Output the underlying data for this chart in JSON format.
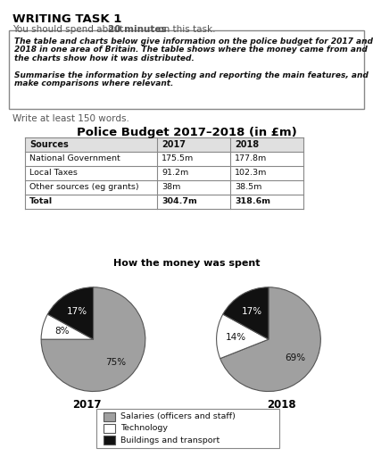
{
  "title_main": "WRITING TASK 1",
  "subtitle": "You should spend about 20 minutes on this task.",
  "box_text_italic": "The table and charts below give information on the police budget for 2017 and\n2018 in one area of Britain. The table shows where the money came from and\nthe charts show how it was distributed.\n\nSummarise the information by selecting and reporting the main features, and\nmake comparisons where relevant.",
  "write_text": "Write at least 150 words.",
  "table_title": "Police Budget 2017–2018 (in £m)",
  "table_headers": [
    "Sources",
    "2017",
    "2018"
  ],
  "table_rows": [
    [
      "National Government",
      "175.5m",
      "177.8m"
    ],
    [
      "Local Taxes",
      "91.2m",
      "102.3m"
    ],
    [
      "Other sources (eg grants)",
      "38m",
      "38.5m"
    ],
    [
      "Total",
      "304.7m",
      "318.6m"
    ]
  ],
  "pie_title": "How the money was spent",
  "pie_2017": [
    75,
    8,
    17
  ],
  "pie_2018": [
    69,
    14,
    17
  ],
  "pie_labels_2017": [
    "75%",
    "8%",
    "17%"
  ],
  "pie_labels_2018": [
    "69%",
    "14%",
    "17%"
  ],
  "pie_colors": [
    "#a0a0a0",
    "#ffffff",
    "#111111"
  ],
  "pie_edge_color": "#555555",
  "pie_year_2017": "2017",
  "pie_year_2018": "2018",
  "legend_labels": [
    "Salaries (officers and staff)",
    "Technology",
    "Buildings and transport"
  ],
  "legend_colors": [
    "#a0a0a0",
    "#ffffff",
    "#111111"
  ],
  "bg_color": "#ffffff",
  "text_color": "#000000",
  "table_header_bg": "#e0e0e0"
}
